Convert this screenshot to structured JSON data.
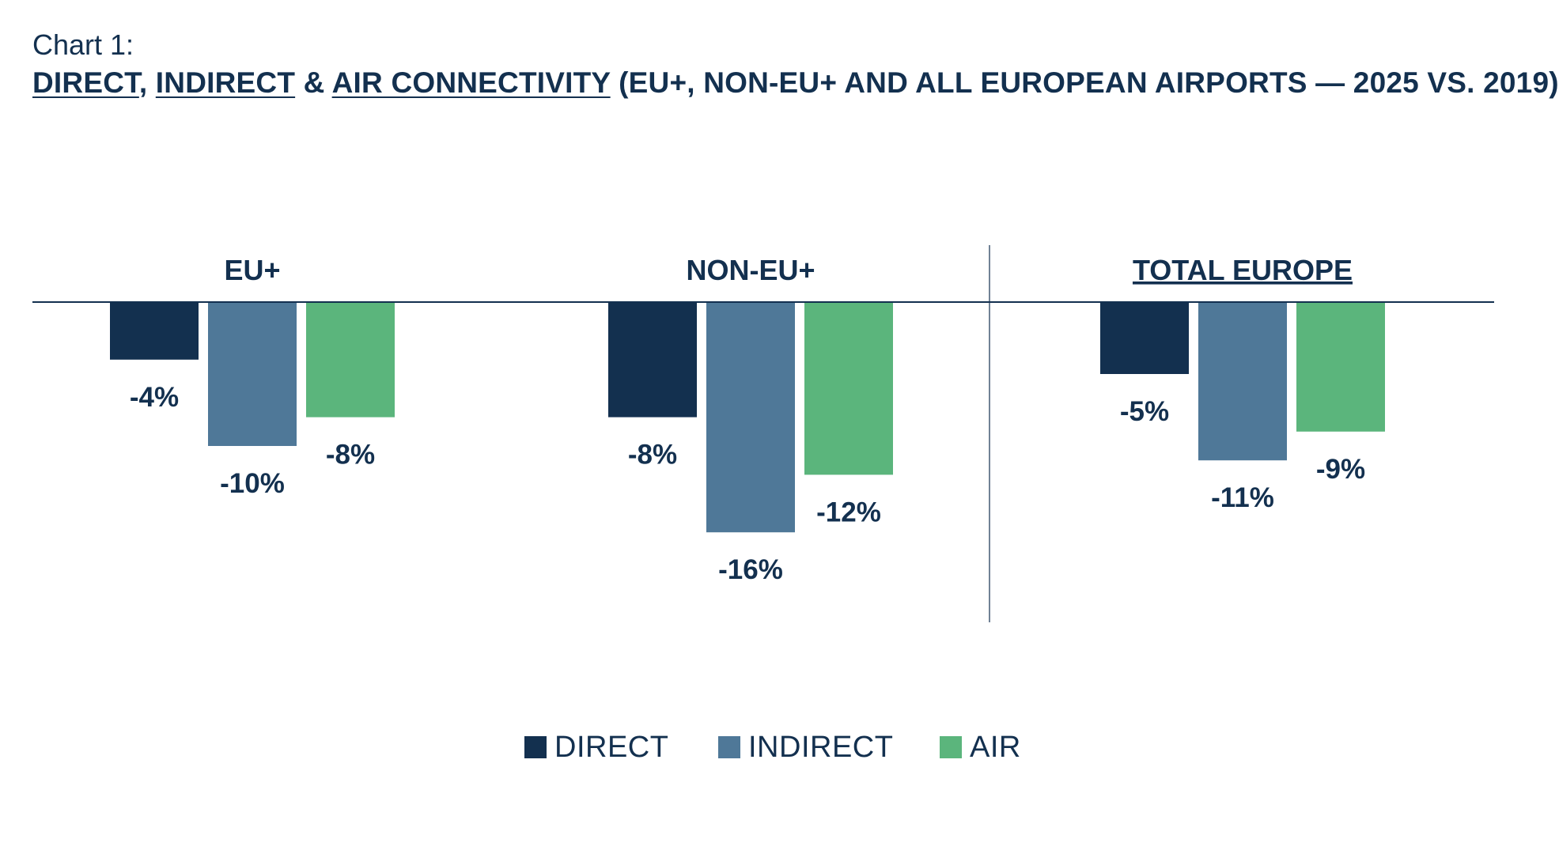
{
  "header": {
    "chart_label": "Chart 1:",
    "title_parts": {
      "direct": "DIRECT",
      "sep1": ", ",
      "indirect": "INDIRECT",
      "sep2": " & ",
      "air": "AIR CONNECTIVITY",
      "rest": " (EU+, NON-EU+ AND ALL EUROPEAN AIRPORTS — 2025 VS. 2019)"
    }
  },
  "colors": {
    "direct": "#13304f",
    "indirect": "#4f7898",
    "air": "#5bb57c",
    "text": "#13304f",
    "axis": "#13304f"
  },
  "chart_data": {
    "type": "bar",
    "title": "DIRECT, INDIRECT & AIR CONNECTIVITY (EU+, NON-EU+ AND ALL EUROPEAN AIRPORTS — 2025 VS. 2019)",
    "categories": [
      "EU+",
      "NON-EU+",
      "TOTAL EUROPE"
    ],
    "series": [
      {
        "name": "DIRECT",
        "values": [
          -4,
          -8,
          -5
        ],
        "labels": [
          "-4%",
          "-8%",
          "-5%"
        ]
      },
      {
        "name": "INDIRECT",
        "values": [
          -10,
          -16,
          -11
        ],
        "labels": [
          "-10%",
          "-16%",
          "-11%"
        ]
      },
      {
        "name": "AIR",
        "values": [
          -8,
          -12,
          -9
        ],
        "labels": [
          "-8%",
          "-12%",
          "-9%"
        ]
      }
    ],
    "unit": "%",
    "ylim": [
      -16,
      0
    ],
    "grid": false,
    "legend_position": "bottom-center",
    "underlined_categories": [
      "TOTAL EUROPE"
    ]
  },
  "legend": {
    "items": [
      {
        "label": "DIRECT",
        "color_key": "direct"
      },
      {
        "label": "INDIRECT",
        "color_key": "indirect"
      },
      {
        "label": "AIR",
        "color_key": "air"
      }
    ]
  }
}
